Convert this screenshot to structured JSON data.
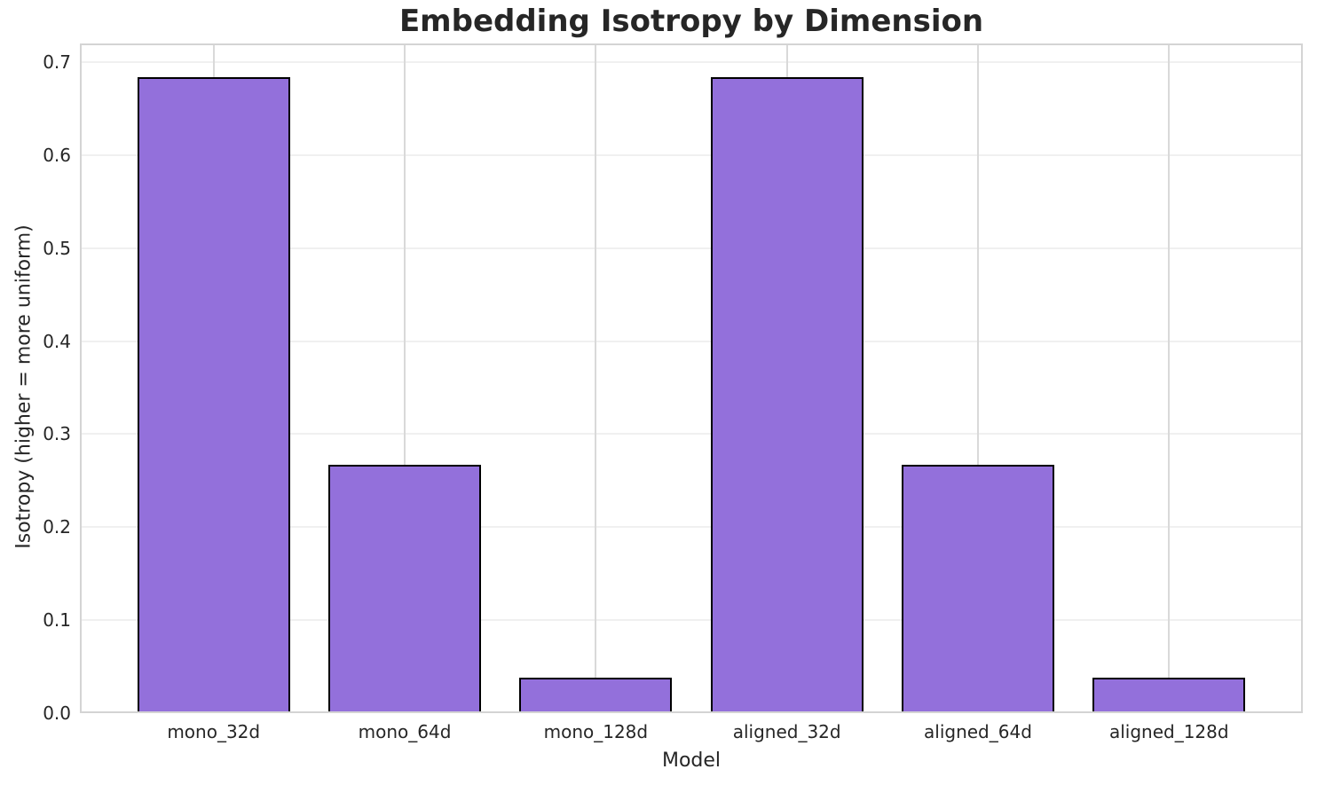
{
  "chart_data": {
    "type": "bar",
    "title": "Embedding Isotropy by Dimension",
    "xlabel": "Model",
    "ylabel": "Isotropy (higher = more uniform)",
    "categories": [
      "mono_32d",
      "mono_64d",
      "mono_128d",
      "aligned_32d",
      "aligned_64d",
      "aligned_128d"
    ],
    "values": [
      0.684,
      0.267,
      0.038,
      0.684,
      0.267,
      0.038
    ],
    "ylim": [
      0,
      0.72
    ],
    "yticks": [
      0,
      0.1,
      0.2,
      0.3,
      0.4,
      0.5,
      0.6,
      0.7
    ],
    "ytick_decimals": 1,
    "grid": "both",
    "legend": "none",
    "colors": {
      "background": "#ffffff",
      "bar_fill": "#9370DB",
      "bar_edge": "#000000",
      "grid_horizontal": "#f0f0f0",
      "grid_vertical": "#d9d9d9",
      "spine": "#d4d4d4",
      "text": "#262626"
    }
  }
}
